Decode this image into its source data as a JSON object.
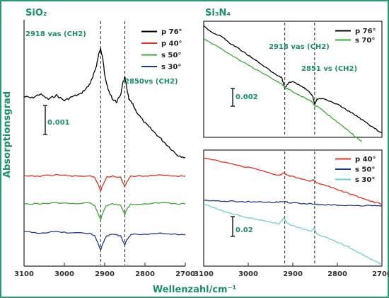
{
  "figure": {
    "ylabel": "Absorptionsgrad",
    "xlabel": "Wellenzahl/cm⁻¹",
    "accent_color": "#1a8f6c",
    "border_color": "#2a9a75"
  },
  "chart_data": [
    {
      "type": "line",
      "title": "SiO₂",
      "xlabel": "Wellenzahl/cm⁻¹",
      "ylabel": "Absorptionsgrad",
      "xlim": [
        3100,
        2700
      ],
      "x_ticks": [
        "3100",
        "3000",
        "2900",
        "2800",
        "2700"
      ],
      "scale_bar": "0.001",
      "reference_lines": [
        2910,
        2850
      ],
      "annotations": [
        "2918 vas (CH2)",
        "2850vs (CH2)"
      ],
      "series": [
        {
          "name": "p 76°",
          "color": "#000000",
          "x": [
            3100,
            3080,
            3060,
            3040,
            3020,
            3000,
            2980,
            2960,
            2940,
            2930,
            2920,
            2915,
            2910,
            2905,
            2900,
            2890,
            2880,
            2870,
            2860,
            2855,
            2850,
            2845,
            2840,
            2830,
            2820,
            2800,
            2780,
            2760,
            2740,
            2720,
            2700
          ],
          "y": [
            0.006,
            0.0059,
            0.0062,
            0.0058,
            0.0061,
            0.0057,
            0.006,
            0.0062,
            0.0068,
            0.0074,
            0.0084,
            0.0092,
            0.0096,
            0.009,
            0.0076,
            0.0064,
            0.0058,
            0.0056,
            0.0062,
            0.007,
            0.0075,
            0.0066,
            0.0058,
            0.0054,
            0.0048,
            0.004,
            0.0034,
            0.0028,
            0.0022,
            0.0016,
            0.0014
          ]
        },
        {
          "name": "p 40°",
          "color": "#e03020",
          "x": [
            3100,
            3060,
            3020,
            2980,
            2940,
            2925,
            2915,
            2910,
            2905,
            2895,
            2880,
            2860,
            2855,
            2850,
            2845,
            2835,
            2800,
            2760,
            2720,
            2700
          ],
          "y": [
            0.0,
            0.0,
            0.0001,
            0.0,
            0.0,
            -0.0001,
            -0.0007,
            -0.0011,
            -0.0007,
            -0.0001,
            0.0,
            -0.0001,
            -0.0005,
            -0.0008,
            -0.0004,
            0.0,
            0.0,
            0.0001,
            0.0,
            0.0
          ]
        },
        {
          "name": "s 50°",
          "color": "#3aaa35",
          "x": [
            3100,
            3060,
            3020,
            2980,
            2940,
            2925,
            2915,
            2910,
            2905,
            2895,
            2880,
            2860,
            2855,
            2850,
            2845,
            2835,
            2800,
            2760,
            2720,
            2700
          ],
          "y": [
            -0.0021,
            -0.0021,
            -0.002,
            -0.0021,
            -0.002,
            -0.0022,
            -0.0029,
            -0.0033,
            -0.0028,
            -0.0022,
            -0.0021,
            -0.0022,
            -0.0026,
            -0.0029,
            -0.0025,
            -0.0021,
            -0.0021,
            -0.002,
            -0.0021,
            -0.0021
          ]
        },
        {
          "name": "s 30°",
          "color": "#1f3a93",
          "x": [
            3100,
            3060,
            3020,
            2980,
            2940,
            2925,
            2915,
            2910,
            2905,
            2895,
            2880,
            2860,
            2855,
            2850,
            2845,
            2835,
            2800,
            2760,
            2720,
            2700
          ],
          "y": [
            -0.0042,
            -0.0043,
            -0.0042,
            -0.0043,
            -0.0043,
            -0.0045,
            -0.0052,
            -0.0056,
            -0.0051,
            -0.0045,
            -0.0044,
            -0.0045,
            -0.0049,
            -0.0052,
            -0.0048,
            -0.0044,
            -0.0044,
            -0.0043,
            -0.0044,
            -0.0044
          ]
        }
      ]
    },
    {
      "type": "line",
      "title": "Si₃N₄",
      "xlim": [
        3100,
        2700
      ],
      "scale_bar": "0.002",
      "reference_lines": [
        2918,
        2851
      ],
      "annotations": [
        "2918 vas (CH2)",
        "2851 vs (CH2)"
      ],
      "series": [
        {
          "name": "p 76°",
          "color": "#000000",
          "x": [
            3100,
            3080,
            3060,
            3040,
            3020,
            3000,
            2980,
            2960,
            2940,
            2925,
            2918,
            2910,
            2900,
            2880,
            2870,
            2860,
            2855,
            2851,
            2845,
            2830,
            2800,
            2780,
            2760,
            2740,
            2720,
            2700
          ],
          "y": [
            0.011,
            0.0102,
            0.0098,
            0.009,
            0.0084,
            0.0077,
            0.007,
            0.0063,
            0.0056,
            0.0052,
            0.004,
            0.0046,
            0.0047,
            0.0042,
            0.0039,
            0.0034,
            0.003,
            0.0022,
            0.0028,
            0.0028,
            0.0022,
            0.0016,
            0.001,
            0.0003,
            -0.0004,
            -0.001
          ]
        },
        {
          "name": "s 70°",
          "color": "#3aaa35",
          "x": [
            3100,
            3060,
            3020,
            2980,
            2940,
            2925,
            2918,
            2910,
            2880,
            2860,
            2855,
            2851,
            2845,
            2820,
            2800,
            2780,
            2760,
            2745
          ],
          "y": [
            0.0095,
            0.0084,
            0.0072,
            0.006,
            0.0049,
            0.0045,
            0.0041,
            0.0039,
            0.0031,
            0.0026,
            0.0024,
            0.002,
            0.002,
            0.001,
            0.0002,
            -0.0006,
            -0.0014,
            -0.002
          ]
        }
      ]
    },
    {
      "type": "line",
      "xlim": [
        3100,
        2700
      ],
      "x_ticks": [
        "3100",
        "3000",
        "2900",
        "2800",
        "2700"
      ],
      "scale_bar": "0.02",
      "reference_lines": [
        2918,
        2851
      ],
      "series": [
        {
          "name": "p 40°",
          "color": "#e03020",
          "x": [
            3100,
            3060,
            3020,
            2980,
            2950,
            2930,
            2920,
            2915,
            2905,
            2880,
            2860,
            2853,
            2845,
            2820,
            2800,
            2780,
            2760,
            2740,
            2720,
            2700
          ],
          "y": [
            0.11,
            0.1,
            0.09,
            0.08,
            0.07,
            0.064,
            0.072,
            0.066,
            0.062,
            0.056,
            0.05,
            0.053,
            0.044,
            0.036,
            0.028,
            0.02,
            0.012,
            0.004,
            -0.004,
            -0.01
          ]
        },
        {
          "name": "s 50°",
          "color": "#1f3a93",
          "x": [
            3100,
            3060,
            3020,
            2980,
            2940,
            2918,
            2910,
            2880,
            2851,
            2840,
            2800,
            2760,
            2720,
            2700
          ],
          "y": [
            0.0,
            -0.002,
            -0.003,
            -0.004,
            -0.005,
            -0.002,
            -0.006,
            -0.008,
            -0.009,
            -0.011,
            -0.012,
            -0.013,
            -0.014,
            -0.014
          ]
        },
        {
          "name": "s 30°",
          "color": "#6ecfd4",
          "x": [
            3100,
            3070,
            3040,
            3010,
            2980,
            2950,
            2930,
            2920,
            2915,
            2905,
            2880,
            2860,
            2852,
            2845,
            2820,
            2800,
            2780,
            2760,
            2740,
            2720,
            2700
          ],
          "y": [
            -0.01,
            -0.022,
            -0.034,
            -0.042,
            -0.05,
            -0.056,
            -0.06,
            -0.044,
            -0.056,
            -0.064,
            -0.072,
            -0.08,
            -0.072,
            -0.088,
            -0.098,
            -0.108,
            -0.118,
            -0.13,
            -0.142,
            -0.154,
            -0.166
          ]
        }
      ]
    }
  ]
}
